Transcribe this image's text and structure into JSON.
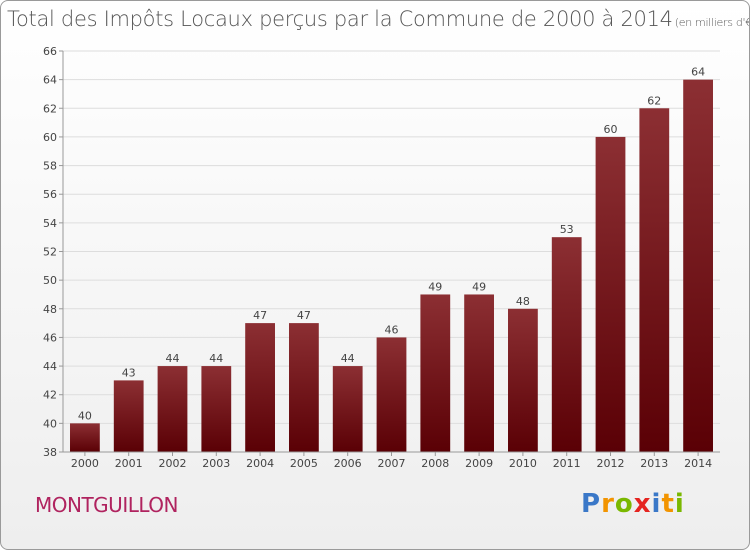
{
  "chart_data": {
    "type": "bar",
    "title": "Total des Impôts Locaux perçus par la Commune de 2000 à 2014",
    "unit": "(en milliers d'€)",
    "categories": [
      "2000",
      "2001",
      "2002",
      "2003",
      "2004",
      "2005",
      "2006",
      "2007",
      "2008",
      "2009",
      "2010",
      "2011",
      "2012",
      "2013",
      "2014"
    ],
    "values": [
      40,
      43,
      44,
      44,
      47,
      47,
      44,
      46,
      49,
      49,
      48,
      53,
      60,
      62,
      64
    ],
    "ylim": [
      38,
      66
    ],
    "yticks": [
      38,
      40,
      42,
      44,
      46,
      48,
      50,
      52,
      54,
      56,
      58,
      60,
      62,
      64,
      66
    ],
    "xlabel": "",
    "ylabel": "",
    "grid": true
  },
  "commune": "MONTGUILLON",
  "logo": {
    "letters": [
      "P",
      "r",
      "o",
      "x",
      "i",
      "t",
      "i"
    ],
    "colors": [
      "#3a78c8",
      "#f29400",
      "#7ab800",
      "#e52420",
      "#3a78c8",
      "#f29400",
      "#7ab800"
    ]
  },
  "colors": {
    "bar_top": "#8c2f33",
    "bar_bottom": "#5a0005",
    "grid": "#dddddd",
    "axis": "#999999"
  }
}
